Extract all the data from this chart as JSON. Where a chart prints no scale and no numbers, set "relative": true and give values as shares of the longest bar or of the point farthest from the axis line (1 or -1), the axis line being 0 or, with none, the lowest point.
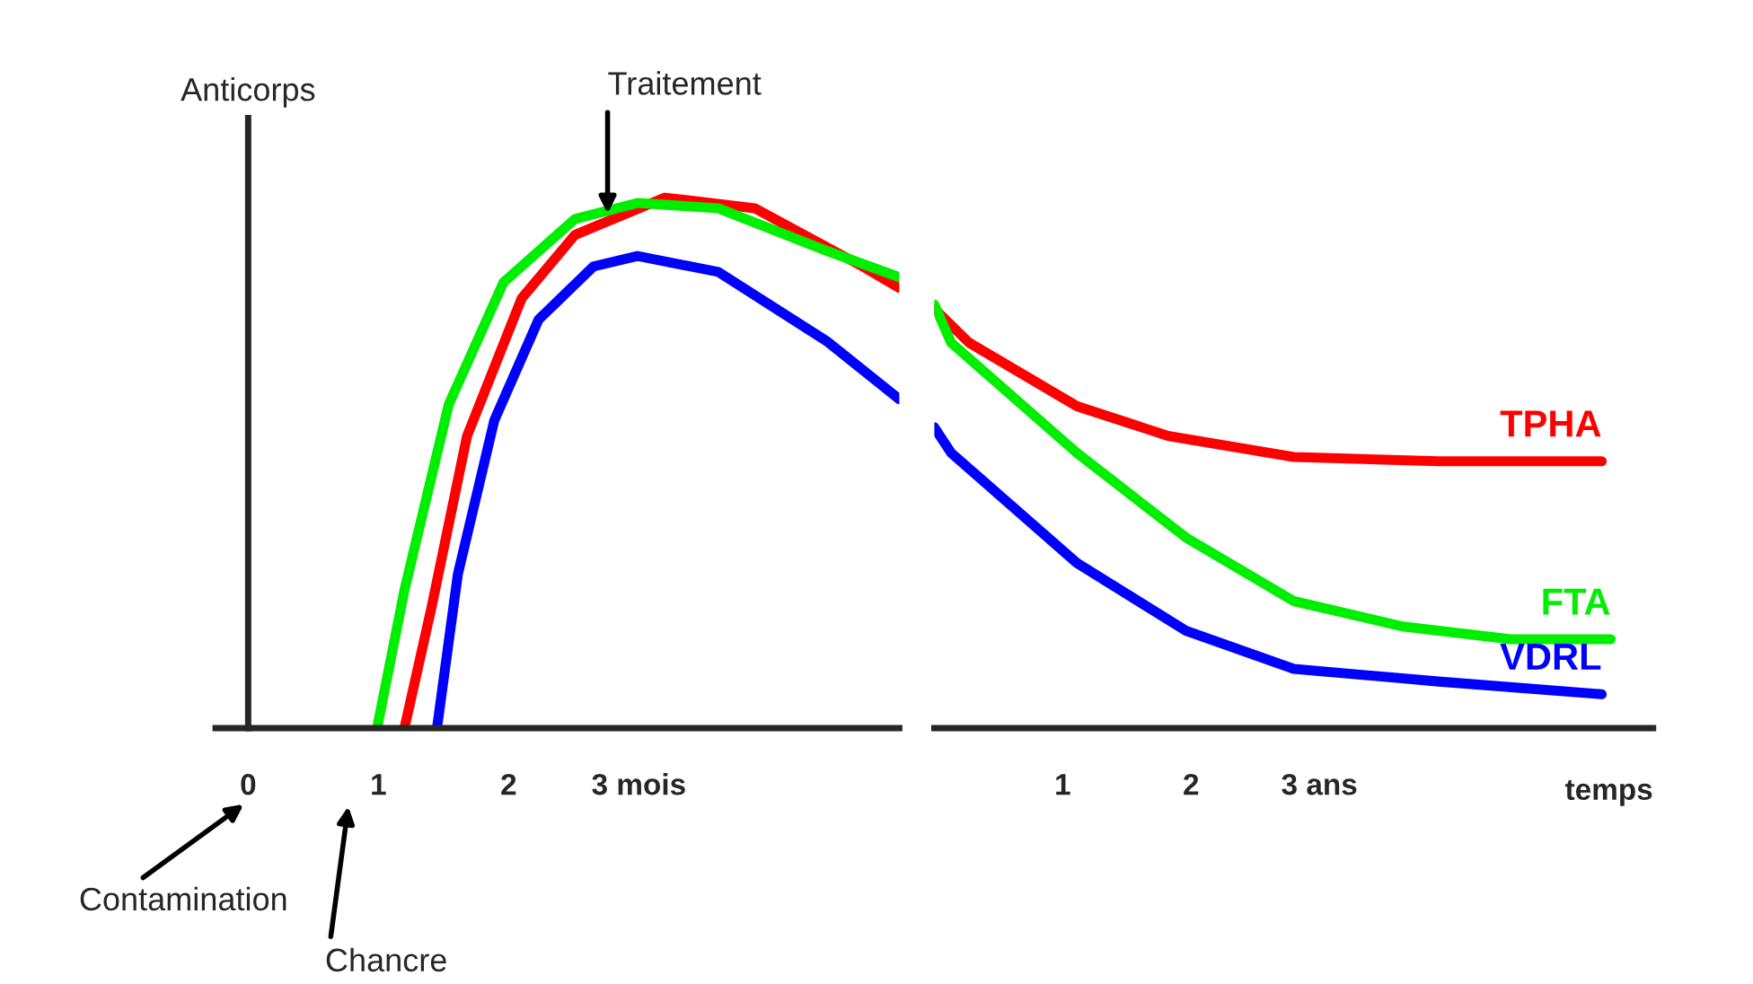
{
  "chart_data": [
    {
      "type": "line",
      "relative": true,
      "ylabel": "Anticorps",
      "xlim": [
        -0.25,
        5
      ],
      "xticks": [
        0,
        1,
        2,
        {
          "value": 3,
          "label": "3 mois"
        }
      ],
      "series": [
        {
          "color": "#ff0000",
          "x": [
            1.2,
            1.41,
            1.68,
            2.1,
            2.51,
            3.2,
            3.89,
            4.72,
            5.0
          ],
          "values": [
            0,
            0.23,
            0.55,
            0.81,
            0.93,
            1.0,
            0.98,
            0.87,
            0.83
          ]
        },
        {
          "color": "#00ee00",
          "x": [
            0.99,
            1.2,
            1.54,
            1.96,
            2.51,
            2.99,
            3.61,
            4.44,
            5.0
          ],
          "values": [
            0,
            0.26,
            0.61,
            0.84,
            0.96,
            0.99,
            0.98,
            0.9,
            0.85
          ]
        },
        {
          "color": "#0000ff",
          "x": [
            1.45,
            1.61,
            1.89,
            2.23,
            2.65,
            2.99,
            3.61,
            4.44,
            5.0
          ],
          "values": [
            0,
            0.29,
            0.58,
            0.77,
            0.87,
            0.89,
            0.86,
            0.73,
            0.62
          ]
        }
      ],
      "annotations": [
        {
          "text": "Traitement",
          "x": 2.76,
          "y": 0.97
        },
        "Contamination",
        "Chancre"
      ],
      "marker": "none",
      "line_style": "solid",
      "legend": false
    },
    {
      "type": "line",
      "relative": true,
      "xlabel": "temps",
      "xlim": [
        0,
        5.6
      ],
      "xticks": [
        1,
        2,
        {
          "value": 3,
          "label": "3 ans"
        }
      ],
      "tick_labels": "x",
      "series": [
        {
          "name": "TPHA",
          "color": "#ff0000",
          "x": [
            0,
            0.27,
            1.11,
            1.82,
            2.8,
            3.93,
            5.2
          ],
          "values": [
            0.99,
            0.91,
            0.76,
            0.69,
            0.64,
            0.63,
            0.63
          ]
        },
        {
          "name": "FTA",
          "color": "#00ee00",
          "x": [
            0,
            0.13,
            1.11,
            1.96,
            2.8,
            3.65,
            4.49,
            5.27
          ],
          "values": [
            1.0,
            0.91,
            0.65,
            0.45,
            0.3,
            0.24,
            0.21,
            0.21
          ]
        },
        {
          "name": "VDRL",
          "color": "#0000ff",
          "x": [
            0,
            0.13,
            1.11,
            1.96,
            2.8,
            3.93,
            5.2
          ],
          "values": [
            0.71,
            0.65,
            0.39,
            0.23,
            0.14,
            0.11,
            0.08
          ]
        }
      ],
      "marker": "none",
      "line_style": "solid",
      "legend": false
    }
  ]
}
